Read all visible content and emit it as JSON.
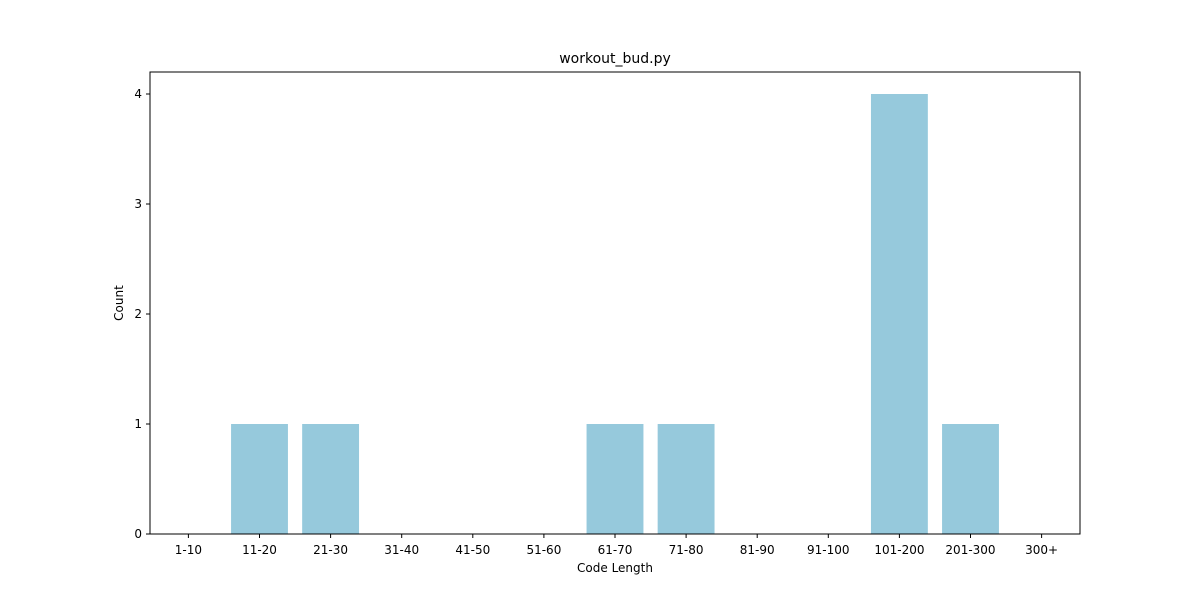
{
  "chart_data": {
    "type": "bar",
    "title": "workout_bud.py",
    "xlabel": "Code Length",
    "ylabel": "Count",
    "categories": [
      "1-10",
      "11-20",
      "21-30",
      "31-40",
      "41-50",
      "51-60",
      "61-70",
      "71-80",
      "81-90",
      "91-100",
      "101-200",
      "201-300",
      "300+"
    ],
    "values": [
      0,
      1,
      1,
      0,
      0,
      0,
      1,
      1,
      0,
      0,
      4,
      1,
      0
    ],
    "ylim": [
      0,
      4.2
    ],
    "yticks": [
      0,
      1,
      2,
      3,
      4
    ],
    "grid": false,
    "legend": "none",
    "bar_color": "#96c9dc"
  }
}
